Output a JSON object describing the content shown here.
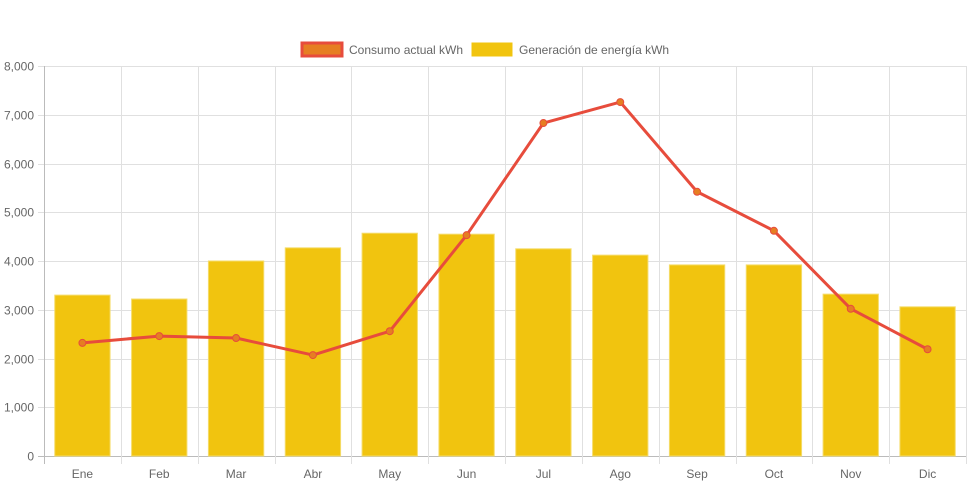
{
  "chart_data": {
    "type": "bar",
    "title": "",
    "xlabel": "",
    "ylabel": "",
    "ylim": [
      0,
      8000
    ],
    "yticks": [
      "0",
      "1,000",
      "2,000",
      "3,000",
      "4,000",
      "5,000",
      "6,000",
      "7,000",
      "8,000"
    ],
    "ytick_values": [
      0,
      1000,
      2000,
      3000,
      4000,
      5000,
      6000,
      7000,
      8000
    ],
    "grid": true,
    "legend_position": "top",
    "categories": [
      "Ene",
      "Feb",
      "Mar",
      "Abr",
      "May",
      "Jun",
      "Jul",
      "Ago",
      "Sep",
      "Oct",
      "Nov",
      "Dic"
    ],
    "series": [
      {
        "name": "Consumo actual kWh",
        "type": "line",
        "color": "#e74c3c",
        "point_color": "#e67e22",
        "values": [
          2320,
          2460,
          2420,
          2070,
          2560,
          4530,
          6830,
          7260,
          5420,
          4620,
          3020,
          2190
        ]
      },
      {
        "name": "Generación de energía kWh",
        "type": "bar",
        "color": "#f1c40f",
        "values": [
          3300,
          3220,
          4000,
          4270,
          4570,
          4550,
          4250,
          4120,
          3920,
          3920,
          3320,
          3060
        ]
      }
    ]
  }
}
